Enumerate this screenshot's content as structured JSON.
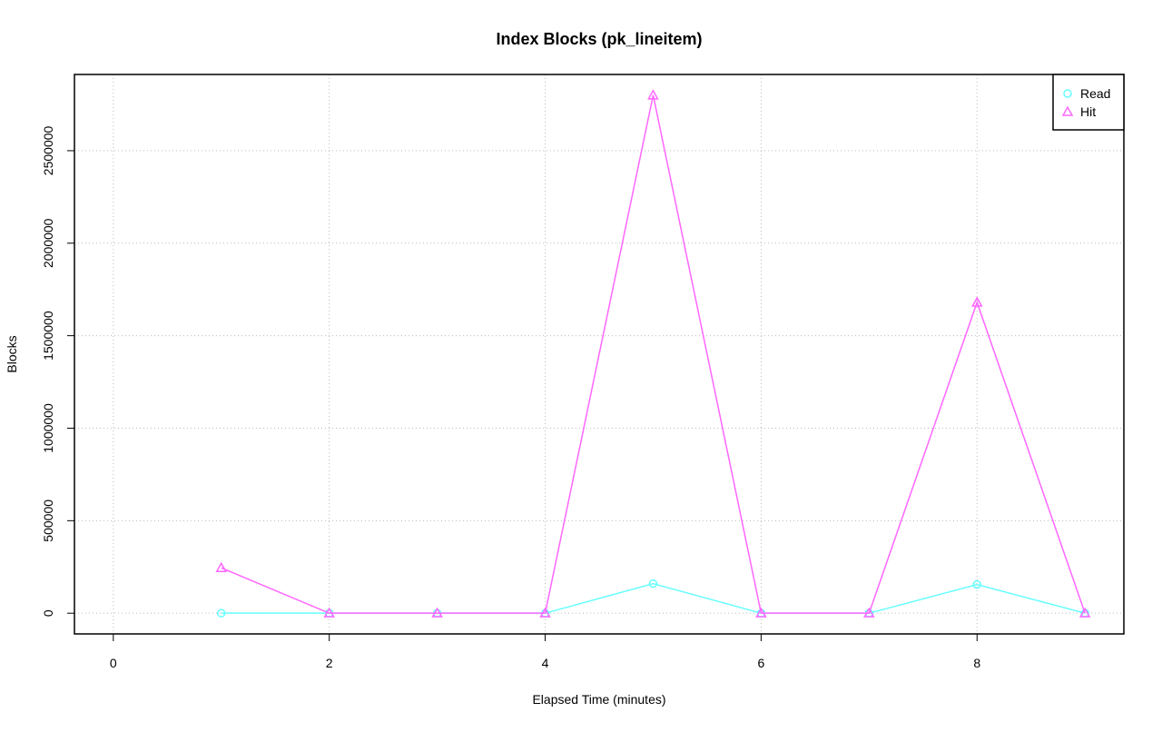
{
  "chart_data": {
    "type": "line",
    "title": "Index Blocks (pk_lineitem)",
    "xlabel": "Elapsed Time (minutes)",
    "ylabel": "Blocks",
    "x": [
      1,
      2,
      3,
      4,
      5,
      6,
      7,
      8,
      9
    ],
    "series": [
      {
        "name": "Read",
        "color": "#66ffff",
        "marker": "circle",
        "values": [
          0,
          0,
          0,
          0,
          160000,
          0,
          0,
          155000,
          0
        ]
      },
      {
        "name": "Hit",
        "color": "#ff66ff",
        "marker": "triangle",
        "values": [
          245000,
          0,
          0,
          0,
          2800000,
          0,
          0,
          1680000,
          0
        ]
      }
    ],
    "xlim": [
      -0.36,
      9.36
    ],
    "xticks": [
      0,
      2,
      4,
      6,
      8
    ],
    "ylim": [
      -112000,
      2912000
    ],
    "yticks": [
      0,
      500000,
      1000000,
      1500000,
      2000000,
      2500000
    ],
    "grid": true,
    "legend": "top-right"
  }
}
